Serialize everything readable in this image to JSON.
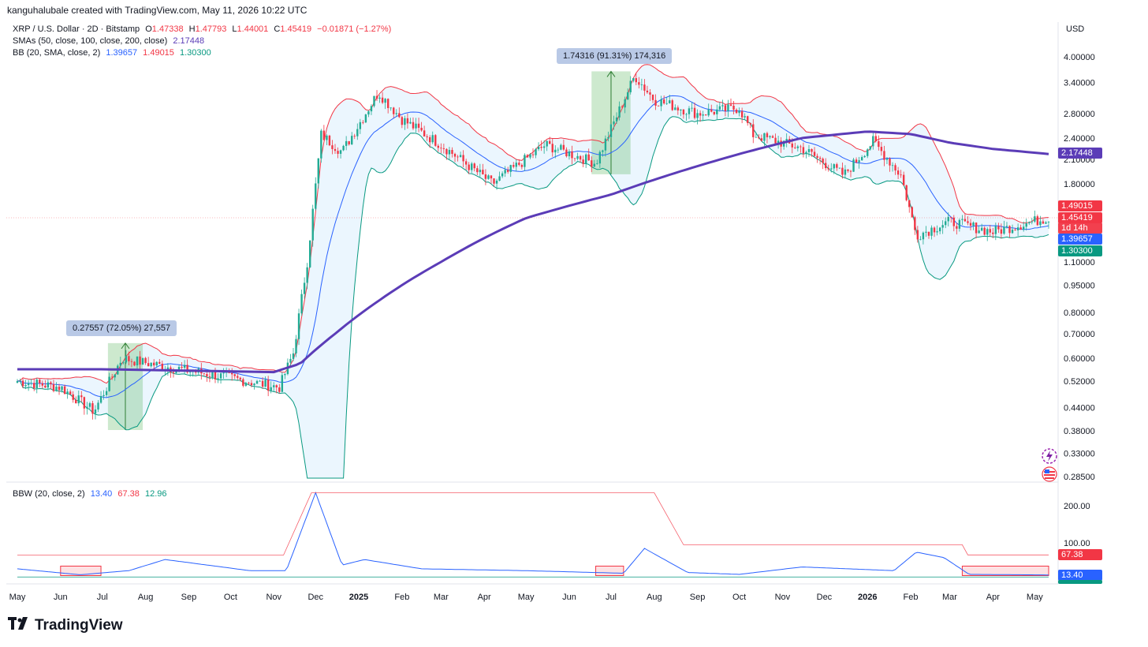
{
  "header": {
    "credit": "kanguhalubale created with TradingView.com, May 11, 2026 10:22 UTC"
  },
  "legend": {
    "symbol": "XRP / U.S. Dollar · 2D · Bitstamp",
    "o_label": "O",
    "o_value": "1.47338",
    "h_label": "H",
    "h_value": "1.47793",
    "l_label": "L",
    "l_value": "1.44001",
    "c_label": "C",
    "c_value": "1.45419",
    "change": "−0.01871 (−1.27%)",
    "sma_label": "SMAs (50, close, 100, close, 200, close)",
    "sma_value": "2.17448",
    "bb_label": "BB (20, SMA, close, 2)",
    "bb_basis": "1.39657",
    "bb_upper": "1.49015",
    "bb_lower": "1.30300",
    "bbw_label": "BBW (20, close, 2)",
    "bbw_value": "13.40",
    "bbw_high": "67.38",
    "bbw_low": "12.96"
  },
  "currency": "USD",
  "price_tags": {
    "sma200": "2.17448",
    "bb_upper": "1.49015",
    "last": "1.45419",
    "countdown": "1d 14h",
    "bb_basis": "1.39657",
    "bb_lower": "1.30300",
    "bbw_high": "67.38",
    "bbw_value": "13.40"
  },
  "measurements": {
    "m1": "0.27557 (72.05%) 27,557",
    "m2": "1.74316 (91.31%) 174,316"
  },
  "colors": {
    "up": "#22ab94",
    "down": "#f23645",
    "sma200": "#5b3cb7",
    "bb_upper": "#f23645",
    "bb_basis": "#2962ff",
    "bb_lower": "#089981",
    "bb_fill": "#e3f2fd",
    "bbw": "#2962ff",
    "bbw_high": "#f23645",
    "bbw_low": "#089981"
  },
  "brand": {
    "name": "TradingView"
  },
  "chart_data": {
    "type": "line",
    "title": "XRP / U.S. Dollar · 2D · Bitstamp",
    "ylabel": "USD",
    "yscale": "log",
    "ylim": [
      0.27,
      4.3
    ],
    "yticks": [
      "4.00000",
      "3.40000",
      "2.80000",
      "2.40000",
      "2.10000",
      "1.80000",
      "1.10000",
      "0.95000",
      "0.80000",
      "0.70000",
      "0.60000",
      "0.52000",
      "0.44000",
      "0.38000",
      "0.33000",
      "0.28500"
    ],
    "xticks": [
      "May",
      "Jun",
      "Jul",
      "Aug",
      "Sep",
      "Oct",
      "Nov",
      "Dec",
      "2025",
      "Feb",
      "Mar",
      "Apr",
      "May",
      "Jun",
      "Jul",
      "Aug",
      "Sep",
      "Oct",
      "Nov",
      "Dec",
      "2026",
      "Feb",
      "Mar",
      "Apr",
      "May"
    ],
    "series": [
      {
        "name": "SMA 200",
        "x": [
          "2024-05-01",
          "2024-07-01",
          "2024-09-01",
          "2024-11-01",
          "2024-11-20",
          "2024-12-15",
          "2025-01-15",
          "2025-03-01",
          "2025-05-01",
          "2025-07-01",
          "2025-08-15",
          "2025-10-01",
          "2025-11-15",
          "2026-01-01",
          "2026-02-01",
          "2026-03-01",
          "2026-04-01",
          "2026-05-11"
        ],
        "values": [
          0.56,
          0.56,
          0.555,
          0.55,
          0.58,
          0.7,
          0.86,
          1.1,
          1.45,
          1.68,
          1.92,
          2.17,
          2.4,
          2.5,
          2.46,
          2.33,
          2.24,
          2.17
        ]
      },
      {
        "name": "XRP close",
        "x": [
          "2024-05-01",
          "2024-06-01",
          "2024-06-25",
          "2024-07-15",
          "2024-08-15",
          "2024-10-01",
          "2024-11-05",
          "2024-11-15",
          "2024-11-25",
          "2024-12-05",
          "2024-12-20",
          "2025-01-15",
          "2025-02-01",
          "2025-03-01",
          "2025-04-07",
          "2025-05-15",
          "2025-06-20",
          "2025-07-18",
          "2025-08-01",
          "2025-09-01",
          "2025-10-01",
          "2025-10-11",
          "2025-11-15",
          "2025-12-15",
          "2026-01-05",
          "2026-01-25",
          "2026-02-05",
          "2026-03-01",
          "2026-04-01",
          "2026-05-11"
        ],
        "values": [
          0.52,
          0.5,
          0.43,
          0.6,
          0.57,
          0.53,
          0.5,
          0.62,
          1.1,
          2.45,
          2.2,
          3.2,
          2.7,
          2.3,
          1.8,
          2.3,
          2.05,
          3.55,
          3.05,
          2.8,
          2.9,
          2.45,
          2.25,
          1.9,
          2.35,
          1.9,
          1.3,
          1.42,
          1.33,
          1.45419
        ]
      }
    ],
    "annotations": [
      "0.27557 (72.05%) 27,557",
      "1.74316 (91.31%) 174,316"
    ],
    "lower_pane": {
      "name": "BBW (20, close, 2)",
      "yticks": [
        "200.00",
        "100.00"
      ],
      "x": [
        "2024-05-01",
        "2024-06-15",
        "2024-07-20",
        "2024-08-15",
        "2024-10-15",
        "2024-11-10",
        "2024-12-01",
        "2024-12-20",
        "2025-01-05",
        "2025-02-15",
        "2025-05-01",
        "2025-07-10",
        "2025-07-25",
        "2025-08-25",
        "2025-10-01",
        "2025-11-15",
        "2026-01-20",
        "2026-02-05",
        "2026-02-25",
        "2026-03-15",
        "2026-05-11"
      ],
      "values": [
        30,
        14,
        25,
        55,
        25,
        25,
        235,
        40,
        55,
        30,
        25,
        18,
        85,
        20,
        15,
        35,
        25,
        75,
        60,
        15,
        13.4
      ]
    }
  }
}
